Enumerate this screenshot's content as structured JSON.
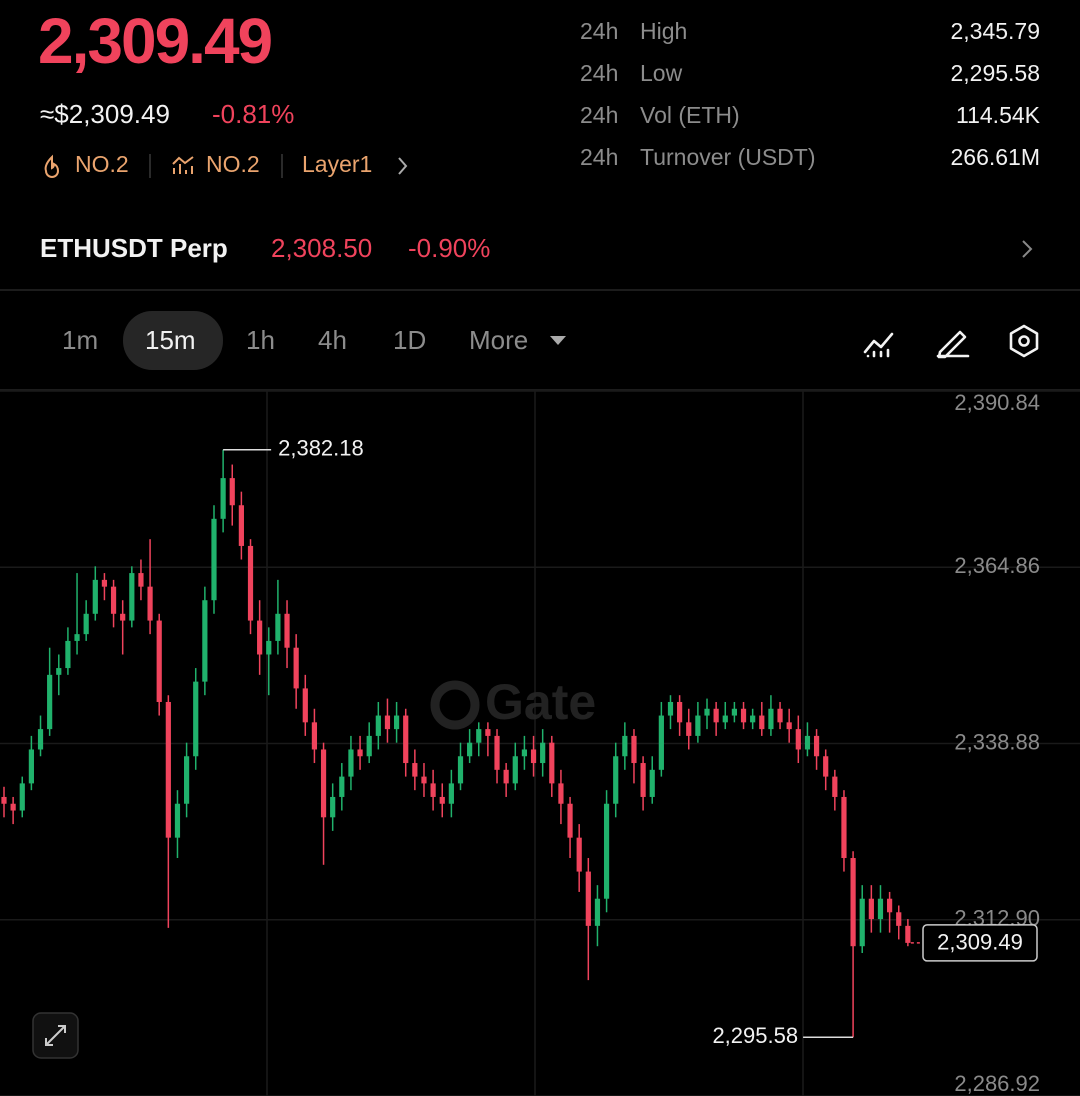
{
  "header": {
    "price": "2,309.49",
    "usd_price": "≈$2,309.49",
    "change": "-0.81%",
    "tags": [
      "NO.2",
      "NO.2",
      "Layer1"
    ]
  },
  "stats": {
    "rows": [
      [
        "24h",
        "High",
        "2,345.79"
      ],
      [
        "24h",
        "Low",
        "2,295.58"
      ],
      [
        "24h",
        "Vol (ETH)",
        "114.54K"
      ],
      [
        "24h",
        "Turnover (USDT)",
        "266.61M"
      ]
    ]
  },
  "perp": {
    "name": "ETHUSDT Perp",
    "price": "2,308.50",
    "change": "-0.90%"
  },
  "tabs": [
    "1m",
    "15m",
    "1h",
    "4h",
    "1D",
    "More"
  ],
  "watermark": "Gate",
  "chart_data": {
    "type": "candlestick",
    "up_color": "#20b26c",
    "down_color": "#f0435c",
    "grid": true,
    "ylim": [
      2286.92,
      2390.84
    ],
    "yticks": [
      {
        "value": 2286.92,
        "label": "2,286.92"
      },
      {
        "value": 2312.9,
        "label": "2,312.90"
      },
      {
        "value": 2338.88,
        "label": "2,338.88"
      },
      {
        "value": 2364.86,
        "label": "2,364.86"
      },
      {
        "value": 2390.84,
        "label": "2,390.84"
      }
    ],
    "annotations": {
      "max": {
        "value": 2382.18,
        "label": "2,382.18"
      },
      "min": {
        "value": 2295.58,
        "label": "2,295.58"
      }
    },
    "last_price": {
      "value": 2309.49,
      "label": "2,309.49"
    },
    "open": [
      2331,
      2330,
      2329,
      2333,
      2338,
      2341,
      2349,
      2350,
      2354,
      2355,
      2358,
      2363,
      2362,
      2358,
      2357,
      2364,
      2362,
      2357,
      2345,
      2325,
      2330,
      2337,
      2348,
      2360,
      2372,
      2378,
      2374,
      2368,
      2357,
      2352,
      2354,
      2358,
      2353,
      2347,
      2342,
      2338,
      2328,
      2331,
      2334,
      2338,
      2337,
      2340,
      2343,
      2341,
      2343,
      2336,
      2334,
      2333,
      2331,
      2330,
      2333,
      2337,
      2339,
      2341,
      2340,
      2335,
      2333,
      2337,
      2338,
      2336,
      2339,
      2333,
      2330,
      2325,
      2320,
      2312,
      2316,
      2330,
      2337,
      2340,
      2336,
      2331,
      2335,
      2343,
      2345,
      2342,
      2340,
      2343,
      2344,
      2342,
      2343,
      2344,
      2342,
      2343,
      2341,
      2344,
      2342,
      2341,
      2338,
      2340,
      2337,
      2334,
      2331,
      2322,
      2309,
      2316,
      2313,
      2316,
      2314,
      2312
    ],
    "high": [
      2332.5,
      2331,
      2334,
      2340,
      2343,
      2353,
      2352,
      2356,
      2364,
      2360,
      2365,
      2364,
      2363,
      2360,
      2365,
      2366,
      2369,
      2358,
      2346,
      2332,
      2339,
      2350,
      2362,
      2374,
      2382.18,
      2380,
      2376,
      2369,
      2360,
      2356,
      2363,
      2360,
      2355,
      2349,
      2344,
      2339,
      2333,
      2336,
      2340,
      2340,
      2342,
      2345,
      2345.5,
      2345,
      2344,
      2338,
      2336,
      2335,
      2333,
      2335,
      2339,
      2341,
      2342,
      2342,
      2341,
      2336,
      2339,
      2340,
      2340,
      2341,
      2340,
      2335,
      2331,
      2327,
      2322,
      2318,
      2332,
      2339,
      2342,
      2341,
      2337,
      2337,
      2345,
      2346,
      2346,
      2344,
      2345,
      2345.5,
      2345,
      2345,
      2345,
      2345,
      2344,
      2345,
      2346,
      2345,
      2344,
      2343,
      2342,
      2341,
      2338,
      2335,
      2332,
      2323,
      2318,
      2318,
      2318,
      2317,
      2315,
      2313
    ],
    "low": [
      2328,
      2327,
      2328,
      2332,
      2337,
      2340,
      2346,
      2349,
      2352,
      2354,
      2357,
      2360,
      2356,
      2352,
      2356,
      2360,
      2355,
      2343,
      2311.7,
      2322,
      2328,
      2335,
      2346,
      2358,
      2370,
      2371,
      2366,
      2355,
      2349,
      2346,
      2352,
      2350,
      2344,
      2340,
      2336,
      2321,
      2326,
      2329,
      2332,
      2335,
      2336,
      2338,
      2339,
      2339,
      2334,
      2332,
      2331,
      2329,
      2328,
      2328,
      2332,
      2336,
      2337,
      2337,
      2333,
      2331,
      2332,
      2335,
      2334,
      2334,
      2331,
      2327,
      2322,
      2317,
      2304,
      2309,
      2314,
      2328,
      2335,
      2333,
      2329,
      2330,
      2334,
      2341,
      2340,
      2338,
      2339,
      2341,
      2340,
      2341,
      2342,
      2341,
      2341,
      2340,
      2340,
      2341,
      2339,
      2336,
      2337,
      2335,
      2332,
      2329,
      2320,
      2295.58,
      2308,
      2311,
      2311,
      2311,
      2310,
      2309
    ],
    "close": [
      2330,
      2329,
      2333,
      2338,
      2341,
      2349,
      2350,
      2354,
      2355,
      2358,
      2363,
      2362,
      2358,
      2357,
      2364,
      2362,
      2357,
      2345,
      2325,
      2330,
      2337,
      2348,
      2360,
      2372,
      2378,
      2374,
      2368,
      2357,
      2352,
      2354,
      2358,
      2353,
      2347,
      2342,
      2338,
      2328,
      2331,
      2334,
      2338,
      2337,
      2340,
      2343,
      2341,
      2343,
      2336,
      2334,
      2333,
      2331,
      2330,
      2333,
      2337,
      2339,
      2341,
      2340,
      2335,
      2333,
      2337,
      2338,
      2336,
      2339,
      2333,
      2330,
      2325,
      2320,
      2312,
      2316,
      2330,
      2337,
      2340,
      2336,
      2331,
      2335,
      2343,
      2345,
      2342,
      2340,
      2343,
      2344,
      2342,
      2343,
      2344,
      2342,
      2343,
      2341,
      2344,
      2342,
      2341,
      2338,
      2340,
      2337,
      2334,
      2331,
      2322,
      2309,
      2316,
      2313,
      2316,
      2314,
      2312,
      2309.49
    ]
  }
}
